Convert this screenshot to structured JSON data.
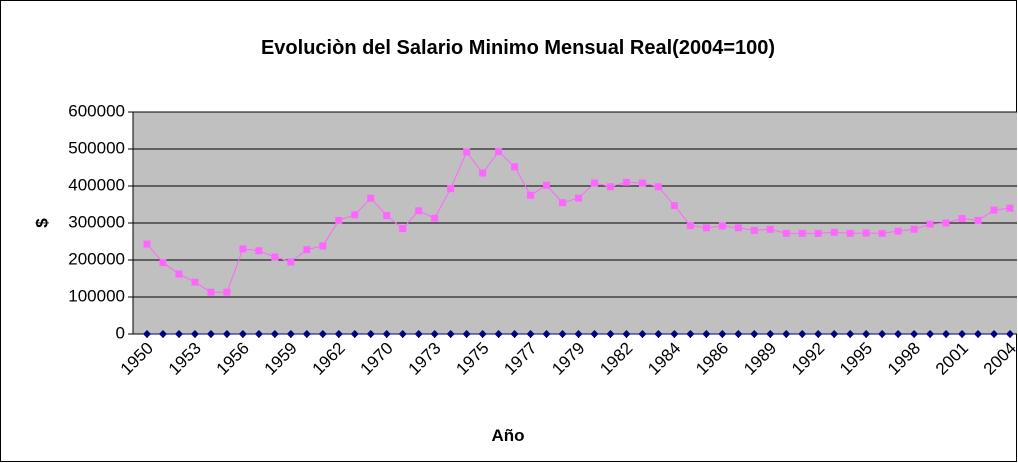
{
  "chart_data": {
    "type": "line",
    "title": "Evoluciòn del Salario Minimo Mensual Real(2004=100)",
    "x_label": "Año",
    "y_label": "$",
    "categories": [
      "1950",
      null,
      null,
      "1953",
      null,
      null,
      "1956",
      null,
      null,
      "1959",
      null,
      null,
      "1962",
      null,
      null,
      "1970",
      null,
      null,
      "1973",
      null,
      null,
      "1975",
      null,
      null,
      "1977",
      null,
      null,
      "1979",
      null,
      null,
      "1982",
      null,
      null,
      "1984",
      null,
      null,
      "1986",
      null,
      null,
      "1989",
      null,
      null,
      "1992",
      null,
      null,
      "1995",
      null,
      null,
      "1998",
      null,
      null,
      "2001",
      null,
      null,
      "2004"
    ],
    "series": [
      {
        "color": "#ff66ff",
        "marker": "square",
        "values": [
          243000,
          193000,
          162000,
          140000,
          113000,
          113000,
          230000,
          225000,
          208000,
          195000,
          228000,
          238000,
          307000,
          322000,
          367000,
          320000,
          285000,
          333000,
          313000,
          393000,
          492000,
          435000,
          493000,
          452000,
          375000,
          402000,
          355000,
          367000,
          408000,
          398000,
          410000,
          408000,
          398000,
          347000,
          293000,
          287000,
          292000,
          287000,
          280000,
          283000,
          272000,
          272000,
          272000,
          275000,
          272000,
          273000,
          272000,
          278000,
          283000,
          297000,
          300000,
          312000,
          307000,
          335000,
          340000
        ]
      },
      {
        "color": "#000080",
        "marker": "diamond",
        "values": [
          0,
          0,
          0,
          0,
          0,
          0,
          0,
          0,
          0,
          0,
          0,
          0,
          0,
          0,
          0,
          0,
          0,
          0,
          0,
          0,
          0,
          0,
          0,
          0,
          0,
          0,
          0,
          0,
          0,
          0,
          0,
          0,
          0,
          0,
          0,
          0,
          0,
          0,
          0,
          0,
          0,
          0,
          0,
          0,
          0,
          0,
          0,
          0,
          0,
          0,
          0,
          0,
          0,
          0,
          0
        ]
      }
    ],
    "ylim": [
      0,
      600000
    ],
    "yticks": [
      0,
      100000,
      200000,
      300000,
      400000,
      500000,
      600000
    ],
    "grid": true,
    "plot_background": "#c0c0c0"
  }
}
